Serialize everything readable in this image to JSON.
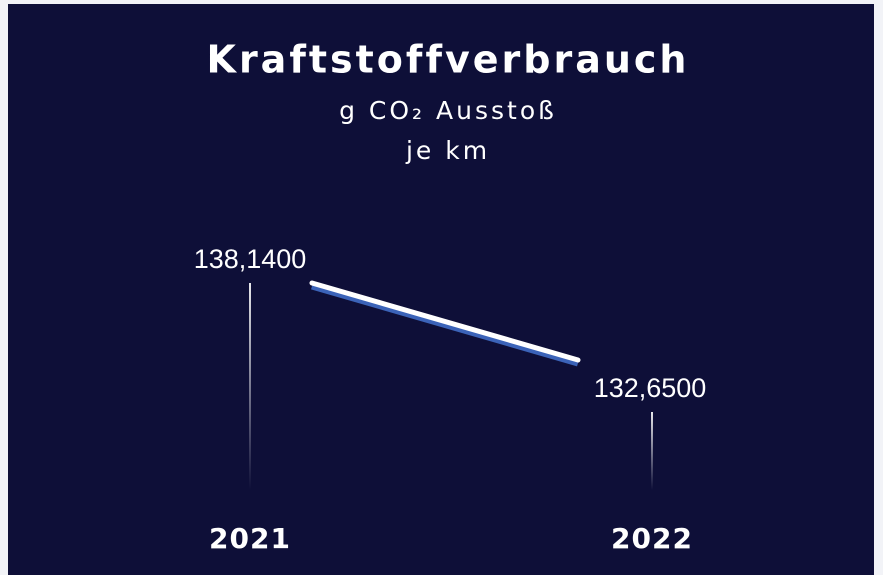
{
  "chart_data": {
    "type": "line",
    "title": "Kraftstoffverbrauch",
    "subtitle": [
      "g CO₂ Ausstoß",
      "je km"
    ],
    "categories": [
      "2021",
      "2022"
    ],
    "values": [
      138.14,
      132.65
    ],
    "value_labels": [
      "138,1400",
      "132,6500"
    ],
    "color": "#ffffff"
  }
}
